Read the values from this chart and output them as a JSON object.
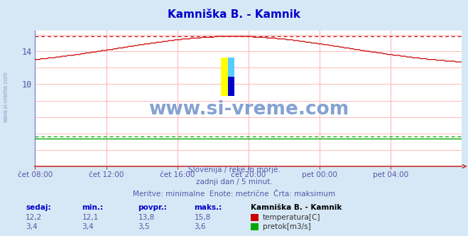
{
  "title": "Kamniška B. - Kamnik",
  "title_color": "#0000cc",
  "bg_color": "#d6e8f5",
  "plot_bg_color": "#ffffff",
  "grid_color": "#ffb0b0",
  "xlabel_color": "#5555aa",
  "x_labels": [
    "čet 08:00",
    "čet 12:00",
    "čet 16:00",
    "čet 20:00",
    "pet 00:00",
    "pet 04:00"
  ],
  "x_ticks_norm": [
    0.0,
    0.1667,
    0.3333,
    0.5,
    0.6667,
    0.8333
  ],
  "y_ticks": [
    10,
    14
  ],
  "ylim_min": 0,
  "ylim_max": 16.5,
  "xlim_min": 0,
  "xlim_max": 1.0,
  "watermark": "www.si-vreme.com",
  "subtitle1": "Slovenija / reke in morje.",
  "subtitle2": "zadnji dan / 5 minut.",
  "subtitle3": "Meritve: minimalne  Enote: metrične  Črta: maksimum",
  "footer_labels": [
    "sedaj:",
    "min.:",
    "povpr.:",
    "maks.:"
  ],
  "footer_station": "Kamniška B. - Kamnik",
  "temp_sedaj": "12,2",
  "temp_min": "12,1",
  "temp_povpr": "13,8",
  "temp_maks": "15,8",
  "temp_label": "temperatura[C]",
  "temp_color": "#cc0000",
  "flow_sedaj": "3,4",
  "flow_min": "3,4",
  "flow_povpr": "3,5",
  "flow_maks": "3,6",
  "flow_label": "pretok[m3/s]",
  "flow_color": "#00aa00",
  "dashed_max_temp": 15.8,
  "dashed_max_flow": 3.6,
  "axis_color": "#8888cc",
  "bottom_axis_color": "#cc3333"
}
